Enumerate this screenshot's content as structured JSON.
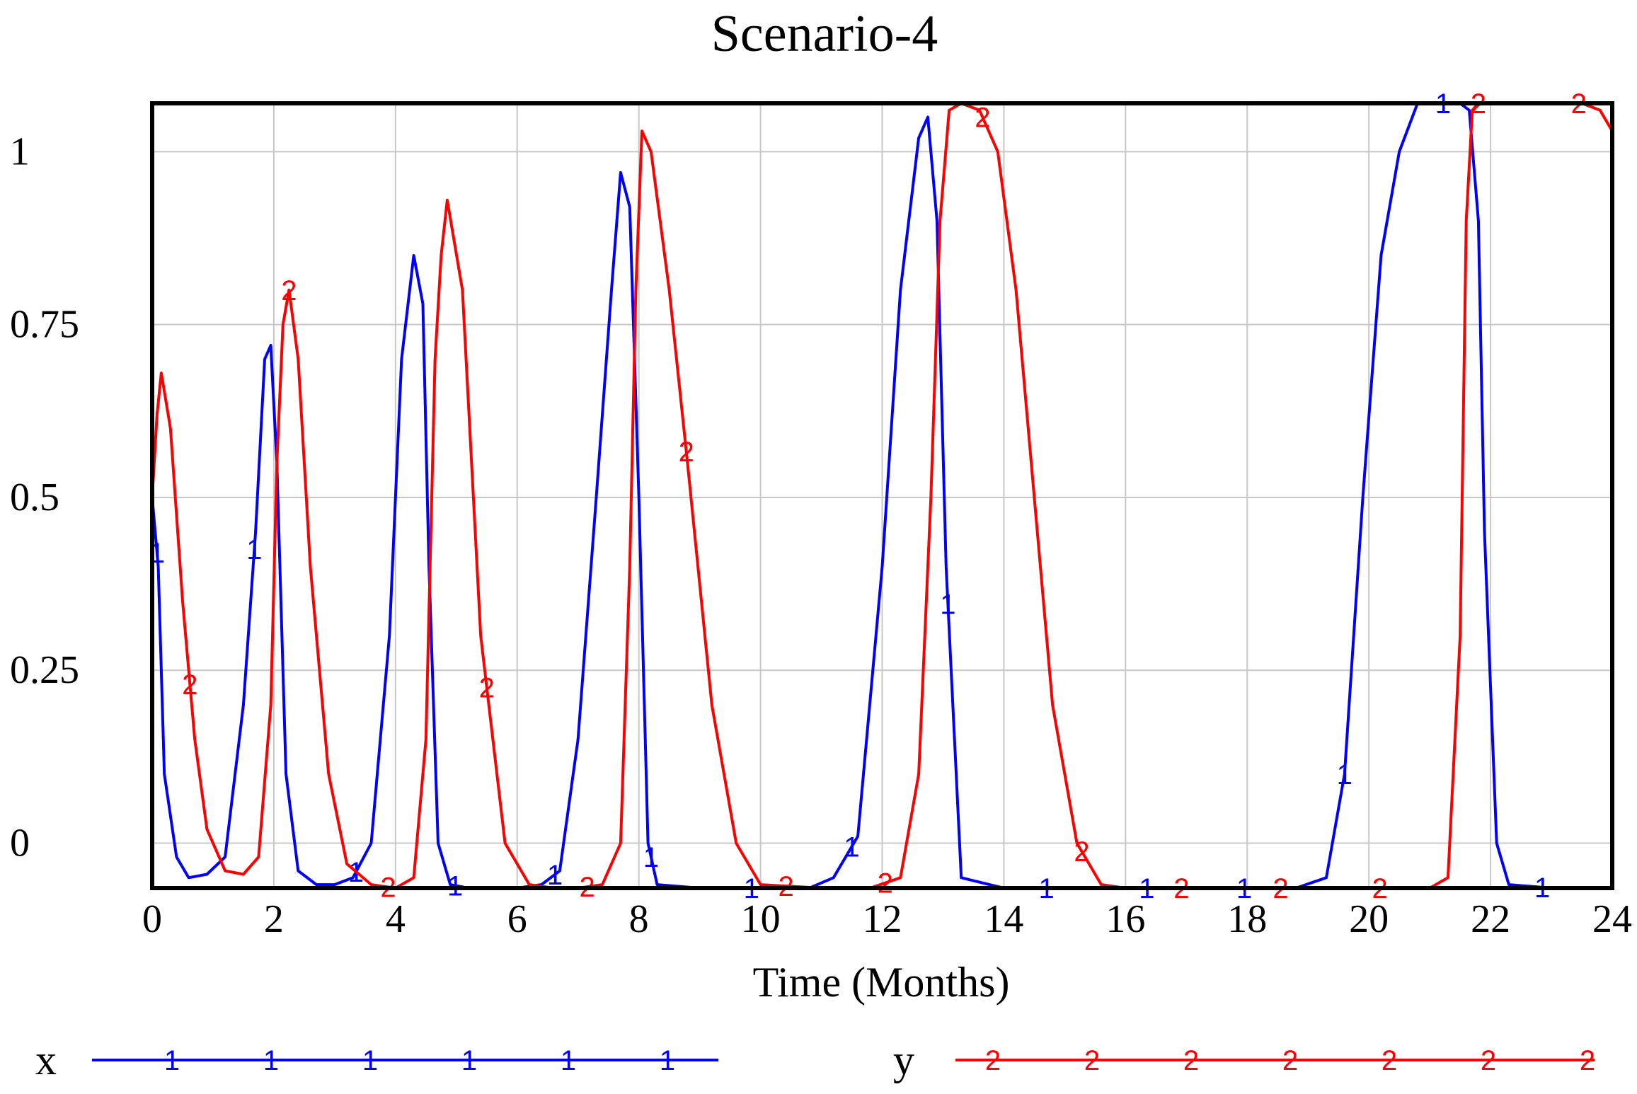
{
  "chart_data": {
    "type": "line",
    "title": "Scenario-4",
    "xlabel": "Time (Months)",
    "ylabel": "",
    "xlim": [
      0,
      24
    ],
    "ylim": [
      -0.065,
      1.07
    ],
    "xticks": [
      0,
      2,
      4,
      6,
      8,
      10,
      12,
      14,
      16,
      18,
      20,
      22,
      24
    ],
    "xtick_labels": [
      "0",
      "2",
      "4",
      "6",
      "8",
      "10",
      "12",
      "14",
      "16",
      "18",
      "20",
      "22",
      "24"
    ],
    "yticks": [
      0,
      0.25,
      0.5,
      0.75,
      1
    ],
    "ytick_labels": [
      "0",
      "0.25",
      "0.5",
      "0.75",
      "1"
    ],
    "grid": true,
    "legend_position": "bottom",
    "series": [
      {
        "name": "x",
        "marker": "1",
        "color": "#0000ff",
        "x": [
          0,
          0.1,
          0.2,
          0.4,
          0.6,
          0.9,
          1.2,
          1.5,
          1.7,
          1.85,
          1.95,
          2.05,
          2.2,
          2.4,
          2.7,
          3.0,
          3.3,
          3.6,
          3.9,
          4.1,
          4.3,
          4.45,
          4.55,
          4.7,
          4.9,
          5.2,
          5.6,
          6.0,
          6.4,
          6.7,
          7.0,
          7.3,
          7.55,
          7.7,
          7.85,
          8.0,
          8.15,
          8.3,
          9.0,
          10.0,
          10.8,
          11.2,
          11.6,
          12.0,
          12.3,
          12.6,
          12.75,
          12.9,
          13.05,
          13.3,
          14,
          15,
          16,
          17,
          18,
          18.8,
          19.3,
          19.6,
          19.9,
          20.2,
          20.5,
          20.8,
          21.2,
          21.5,
          21.65,
          21.8,
          21.9,
          22.1,
          22.3,
          23,
          24
        ],
        "y": [
          0.5,
          0.4,
          0.1,
          -0.02,
          -0.05,
          -0.045,
          -0.02,
          0.2,
          0.45,
          0.7,
          0.72,
          0.55,
          0.1,
          -0.04,
          -0.06,
          -0.06,
          -0.05,
          0.0,
          0.3,
          0.7,
          0.85,
          0.78,
          0.4,
          0.0,
          -0.06,
          -0.065,
          -0.065,
          -0.065,
          -0.06,
          -0.04,
          0.15,
          0.5,
          0.8,
          0.97,
          0.92,
          0.5,
          0.0,
          -0.06,
          -0.065,
          -0.065,
          -0.065,
          -0.05,
          0.01,
          0.4,
          0.8,
          1.02,
          1.05,
          0.9,
          0.4,
          -0.05,
          -0.065,
          -0.065,
          -0.065,
          -0.065,
          -0.065,
          -0.065,
          -0.05,
          0.1,
          0.5,
          0.85,
          1.0,
          1.07,
          1.07,
          1.07,
          1.06,
          0.9,
          0.45,
          0.0,
          -0.06,
          -0.065,
          -0.065
        ],
        "marker_x": [
          0.08,
          1.68,
          3.35,
          4.98,
          6.62,
          8.2,
          9.85,
          11.5,
          13.08,
          14.7,
          16.35,
          17.95,
          19.6,
          21.22,
          22.85
        ],
        "legend_marker_count": 6
      },
      {
        "name": "y",
        "marker": "2",
        "color": "#ff0000",
        "x": [
          0,
          0.08,
          0.15,
          0.3,
          0.5,
          0.7,
          0.9,
          1.2,
          1.5,
          1.75,
          1.95,
          2.05,
          2.15,
          2.25,
          2.4,
          2.6,
          2.9,
          3.2,
          3.6,
          4.0,
          4.3,
          4.5,
          4.65,
          4.75,
          4.85,
          5.1,
          5.4,
          5.8,
          6.2,
          6.6,
          7.0,
          7.4,
          7.7,
          7.85,
          7.95,
          8.05,
          8.2,
          8.5,
          8.8,
          9.2,
          9.6,
          10,
          11,
          11.8,
          12.3,
          12.6,
          12.8,
          12.95,
          13.1,
          13.3,
          13.6,
          13.9,
          14.2,
          14.5,
          14.8,
          15.2,
          15.6,
          16,
          17,
          18,
          19,
          20,
          21,
          21.3,
          21.5,
          21.6,
          21.7,
          21.8,
          22,
          23,
          23.5,
          23.8,
          24
        ],
        "y": [
          0.5,
          0.62,
          0.68,
          0.6,
          0.35,
          0.15,
          0.02,
          -0.04,
          -0.045,
          -0.02,
          0.2,
          0.55,
          0.75,
          0.8,
          0.7,
          0.4,
          0.1,
          -0.03,
          -0.06,
          -0.065,
          -0.05,
          0.15,
          0.7,
          0.85,
          0.93,
          0.8,
          0.3,
          0.0,
          -0.06,
          -0.065,
          -0.065,
          -0.06,
          0.0,
          0.4,
          0.8,
          1.03,
          1.0,
          0.8,
          0.55,
          0.2,
          0.0,
          -0.06,
          -0.065,
          -0.065,
          -0.05,
          0.1,
          0.5,
          0.9,
          1.06,
          1.07,
          1.06,
          1.0,
          0.8,
          0.5,
          0.2,
          0.0,
          -0.06,
          -0.065,
          -0.065,
          -0.065,
          -0.065,
          -0.065,
          -0.065,
          -0.05,
          0.3,
          0.9,
          1.06,
          1.07,
          1.07,
          1.07,
          1.07,
          1.06,
          1.03
        ],
        "marker_x": [
          0.62,
          2.25,
          3.88,
          5.5,
          7.15,
          8.78,
          10.42,
          12.05,
          13.65,
          15.28,
          16.92,
          18.55,
          20.18,
          21.8,
          23.45
        ],
        "legend_marker_count": 7
      }
    ]
  }
}
